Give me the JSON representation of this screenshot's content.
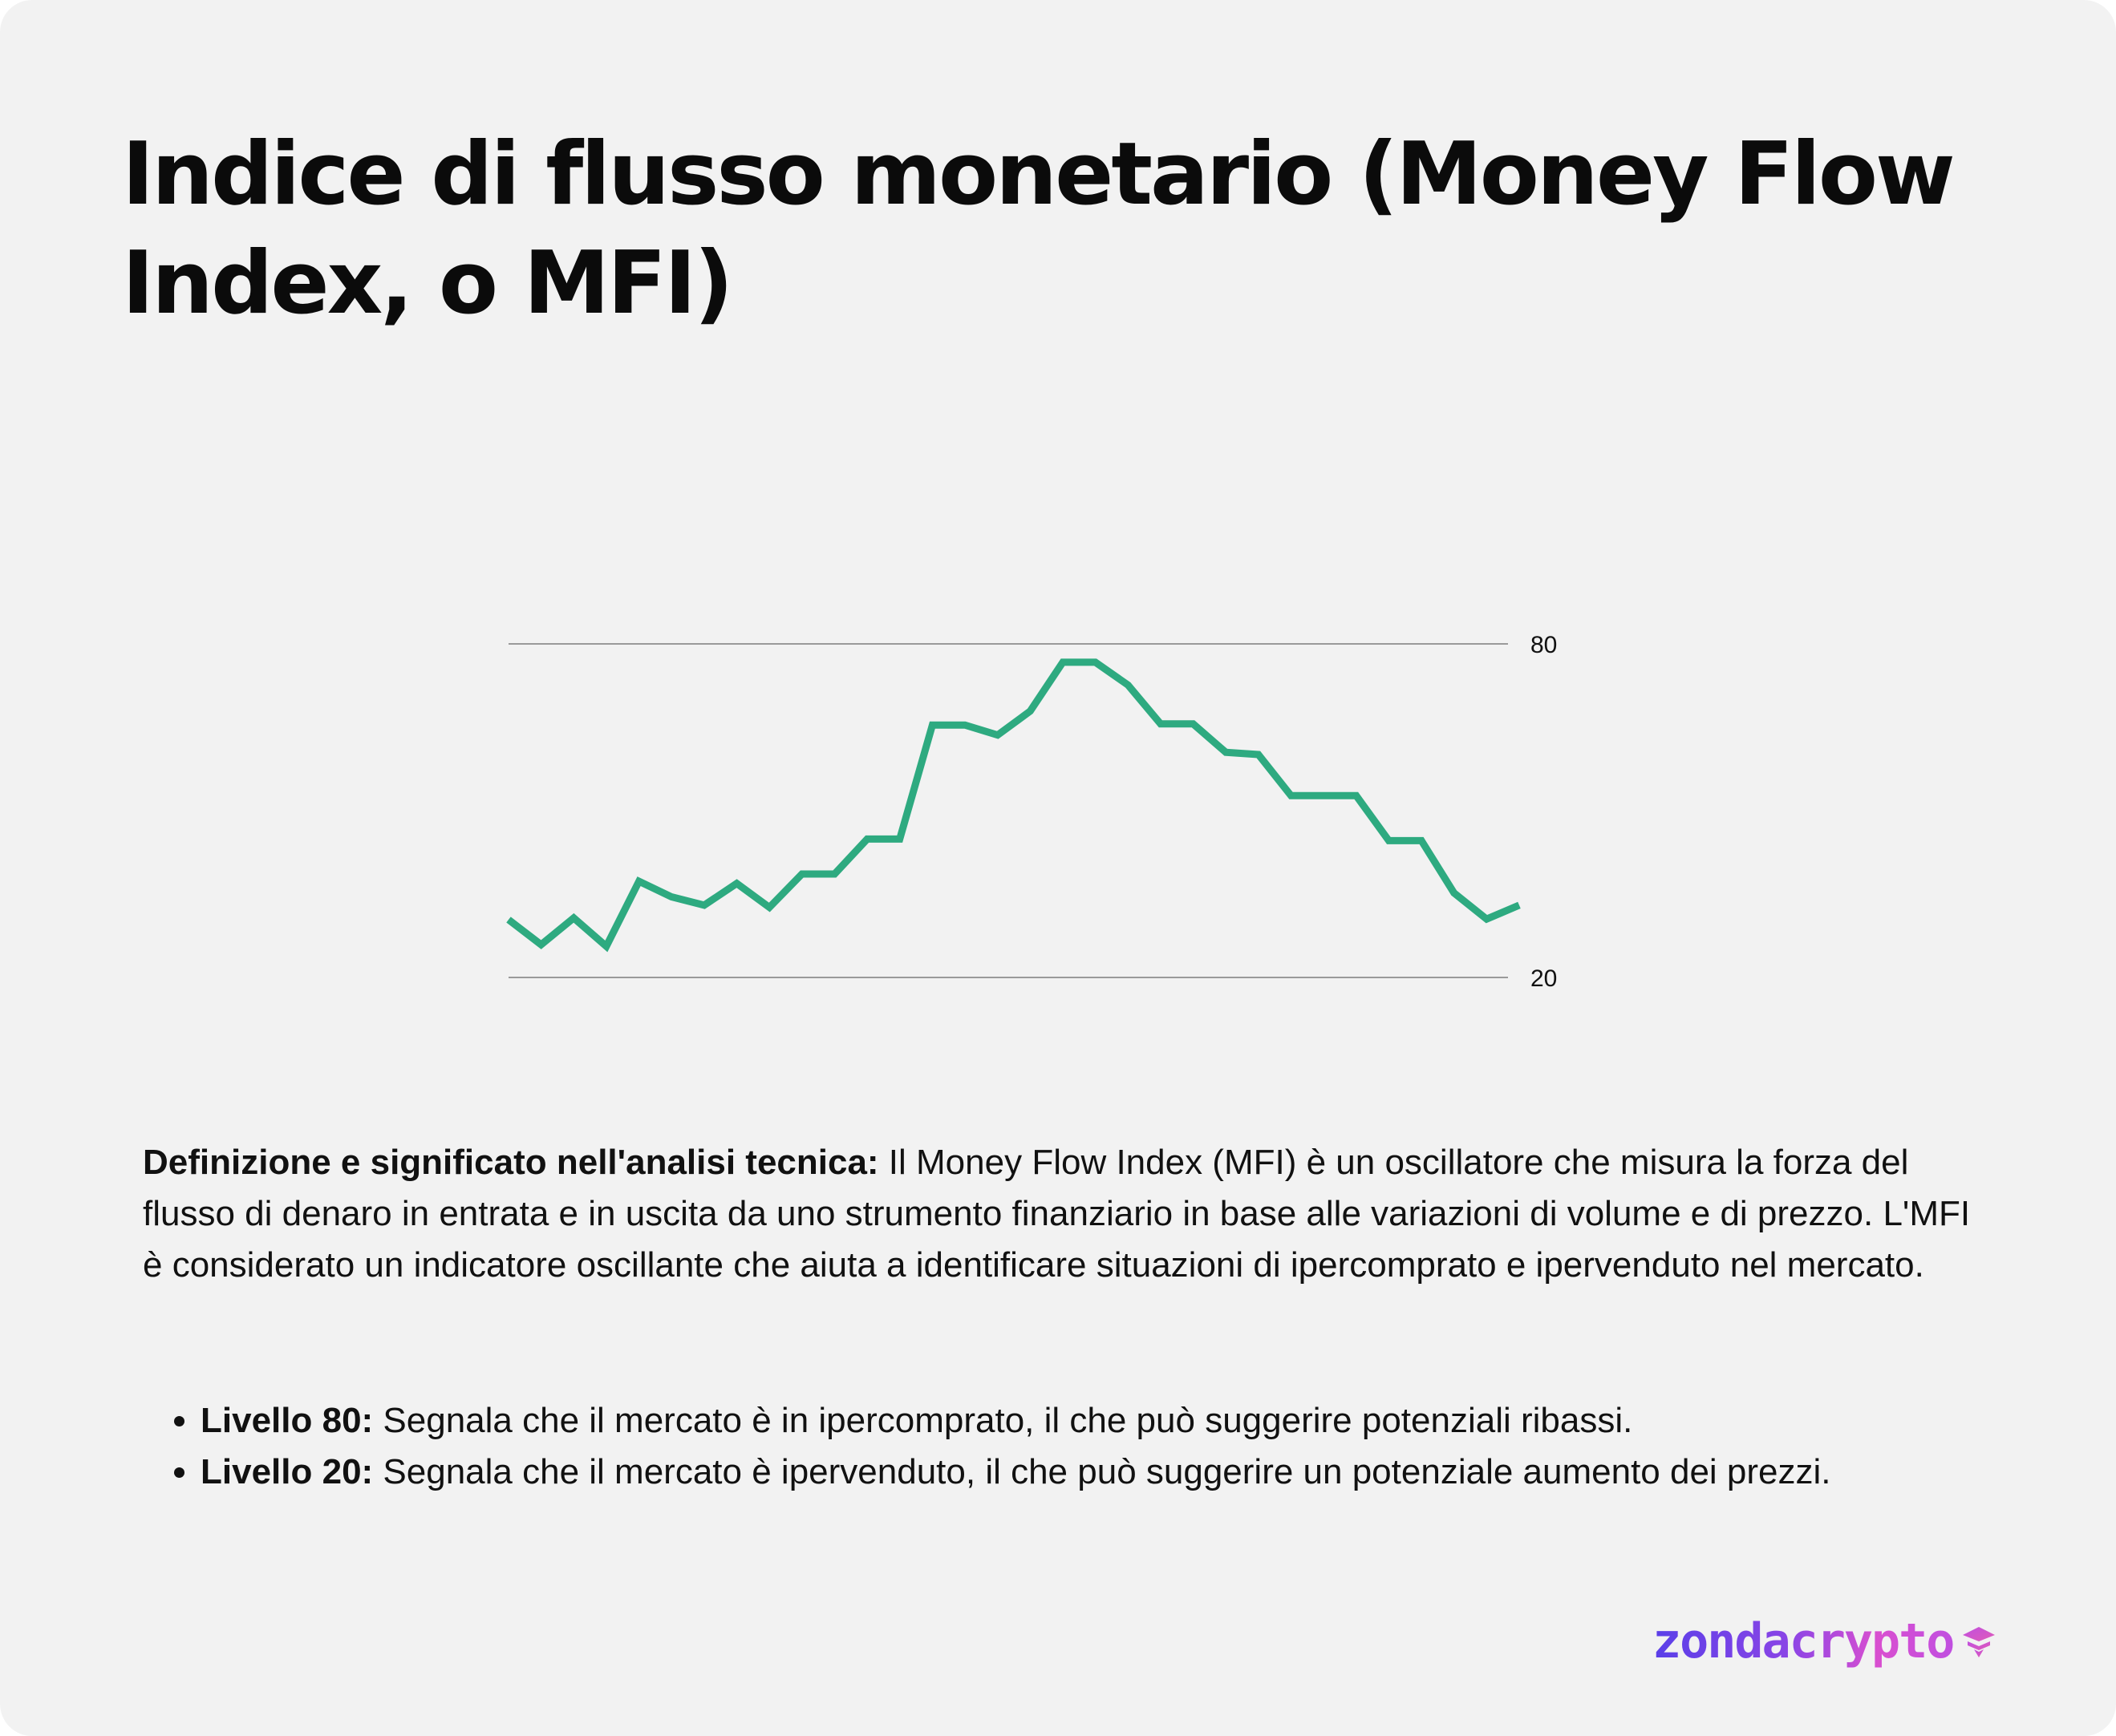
{
  "title": "Indice di flusso monetario (Money Flow Index, o MFI)",
  "description": {
    "lead": "Definizione e significato nell'analisi tecnica:",
    "text": " Il Money Flow Index (MFI) è un oscillatore che misura la forza del flusso di denaro in entrata e in uscita da uno strumento finanziario in base alle variazioni di volume e di prezzo. L'MFI è considerato un indicatore oscillante che aiuta a identificare situazioni di ipercomprato e ipervenduto nel mercato."
  },
  "bullets": [
    {
      "lead": "Livello 80:",
      "text": " Segnala che il mercato è in ipercomprato, il che può suggerire potenziali ribassi."
    },
    {
      "lead": "Livello 20:",
      "text": " Segnala che il mercato è ipervenduto, il che può suggerire un potenziale aumento dei prezzi."
    }
  ],
  "logo": {
    "text": "zondacrypto",
    "icon": "zondacrypto-logo-icon"
  },
  "chart_data": {
    "type": "line",
    "title": "",
    "xlabel": "",
    "ylabel": "",
    "grid": false,
    "reference_lines": [
      {
        "value": 80,
        "label": "80",
        "color": "#9a9a9a"
      },
      {
        "value": 20,
        "label": "20",
        "color": "#9a9a9a"
      }
    ],
    "ylim": [
      20,
      80
    ],
    "series": [
      {
        "color": "#2eaa80",
        "x": [
          0,
          1,
          2,
          3,
          4,
          5,
          6,
          7,
          8,
          9,
          10,
          11,
          12,
          13,
          14,
          15,
          16,
          17,
          18,
          19,
          20,
          21,
          22,
          23,
          24,
          25,
          26,
          27,
          28,
          29,
          30,
          31
        ],
        "y": [
          30.4,
          25.9,
          30.7,
          25.6,
          37.3,
          34.5,
          33.0,
          36.9,
          32.6,
          38.6,
          38.6,
          44.9,
          44.9,
          65.4,
          65.4,
          63.6,
          67.9,
          76.7,
          76.7,
          72.6,
          65.6,
          65.6,
          60.5,
          60.1,
          52.7,
          52.7,
          52.7,
          44.6,
          44.6,
          35.2,
          30.5,
          33.0
        ]
      }
    ]
  }
}
